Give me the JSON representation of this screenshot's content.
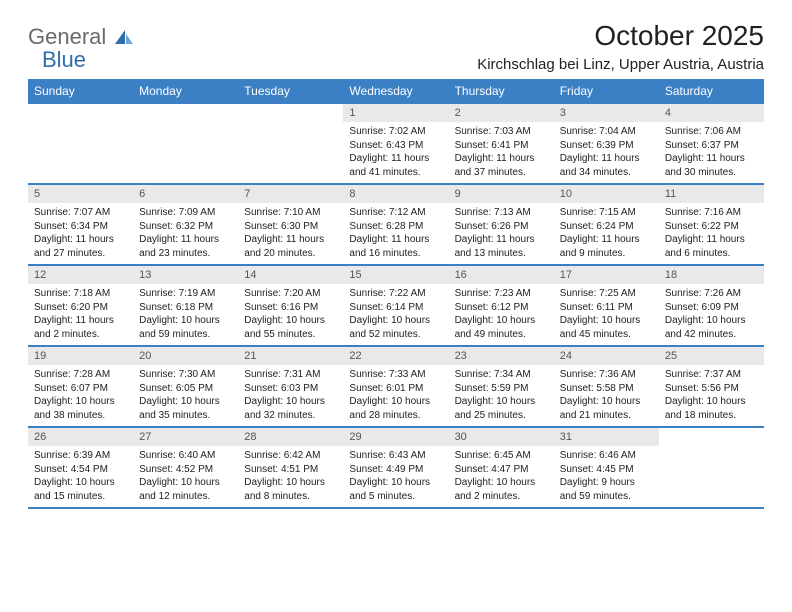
{
  "brand": {
    "general": "General",
    "blue": "Blue"
  },
  "title": "October 2025",
  "location": "Kirchschlag bei Linz, Upper Austria, Austria",
  "colors": {
    "header_bg": "#3b7fc4",
    "header_text": "#ffffff",
    "daynum_bg": "#e9e9e9",
    "daynum_text": "#555555",
    "rule": "#3b7fc4",
    "logo_gray": "#6b6b6b",
    "logo_blue": "#2f6fab",
    "body_text": "#222222",
    "page_bg": "#ffffff"
  },
  "typography": {
    "title_fontsize": 28,
    "location_fontsize": 15,
    "dayheader_fontsize": 12,
    "daynum_fontsize": 11,
    "cell_fontsize": 10
  },
  "day_headers": [
    "Sunday",
    "Monday",
    "Tuesday",
    "Wednesday",
    "Thursday",
    "Friday",
    "Saturday"
  ],
  "weeks": [
    {
      "days": [
        null,
        null,
        null,
        {
          "num": "1",
          "sunrise": "Sunrise: 7:02 AM",
          "sunset": "Sunset: 6:43 PM",
          "daylight": "Daylight: 11 hours and 41 minutes."
        },
        {
          "num": "2",
          "sunrise": "Sunrise: 7:03 AM",
          "sunset": "Sunset: 6:41 PM",
          "daylight": "Daylight: 11 hours and 37 minutes."
        },
        {
          "num": "3",
          "sunrise": "Sunrise: 7:04 AM",
          "sunset": "Sunset: 6:39 PM",
          "daylight": "Daylight: 11 hours and 34 minutes."
        },
        {
          "num": "4",
          "sunrise": "Sunrise: 7:06 AM",
          "sunset": "Sunset: 6:37 PM",
          "daylight": "Daylight: 11 hours and 30 minutes."
        }
      ]
    },
    {
      "days": [
        {
          "num": "5",
          "sunrise": "Sunrise: 7:07 AM",
          "sunset": "Sunset: 6:34 PM",
          "daylight": "Daylight: 11 hours and 27 minutes."
        },
        {
          "num": "6",
          "sunrise": "Sunrise: 7:09 AM",
          "sunset": "Sunset: 6:32 PM",
          "daylight": "Daylight: 11 hours and 23 minutes."
        },
        {
          "num": "7",
          "sunrise": "Sunrise: 7:10 AM",
          "sunset": "Sunset: 6:30 PM",
          "daylight": "Daylight: 11 hours and 20 minutes."
        },
        {
          "num": "8",
          "sunrise": "Sunrise: 7:12 AM",
          "sunset": "Sunset: 6:28 PM",
          "daylight": "Daylight: 11 hours and 16 minutes."
        },
        {
          "num": "9",
          "sunrise": "Sunrise: 7:13 AM",
          "sunset": "Sunset: 6:26 PM",
          "daylight": "Daylight: 11 hours and 13 minutes."
        },
        {
          "num": "10",
          "sunrise": "Sunrise: 7:15 AM",
          "sunset": "Sunset: 6:24 PM",
          "daylight": "Daylight: 11 hours and 9 minutes."
        },
        {
          "num": "11",
          "sunrise": "Sunrise: 7:16 AM",
          "sunset": "Sunset: 6:22 PM",
          "daylight": "Daylight: 11 hours and 6 minutes."
        }
      ]
    },
    {
      "days": [
        {
          "num": "12",
          "sunrise": "Sunrise: 7:18 AM",
          "sunset": "Sunset: 6:20 PM",
          "daylight": "Daylight: 11 hours and 2 minutes."
        },
        {
          "num": "13",
          "sunrise": "Sunrise: 7:19 AM",
          "sunset": "Sunset: 6:18 PM",
          "daylight": "Daylight: 10 hours and 59 minutes."
        },
        {
          "num": "14",
          "sunrise": "Sunrise: 7:20 AM",
          "sunset": "Sunset: 6:16 PM",
          "daylight": "Daylight: 10 hours and 55 minutes."
        },
        {
          "num": "15",
          "sunrise": "Sunrise: 7:22 AM",
          "sunset": "Sunset: 6:14 PM",
          "daylight": "Daylight: 10 hours and 52 minutes."
        },
        {
          "num": "16",
          "sunrise": "Sunrise: 7:23 AM",
          "sunset": "Sunset: 6:12 PM",
          "daylight": "Daylight: 10 hours and 49 minutes."
        },
        {
          "num": "17",
          "sunrise": "Sunrise: 7:25 AM",
          "sunset": "Sunset: 6:11 PM",
          "daylight": "Daylight: 10 hours and 45 minutes."
        },
        {
          "num": "18",
          "sunrise": "Sunrise: 7:26 AM",
          "sunset": "Sunset: 6:09 PM",
          "daylight": "Daylight: 10 hours and 42 minutes."
        }
      ]
    },
    {
      "days": [
        {
          "num": "19",
          "sunrise": "Sunrise: 7:28 AM",
          "sunset": "Sunset: 6:07 PM",
          "daylight": "Daylight: 10 hours and 38 minutes."
        },
        {
          "num": "20",
          "sunrise": "Sunrise: 7:30 AM",
          "sunset": "Sunset: 6:05 PM",
          "daylight": "Daylight: 10 hours and 35 minutes."
        },
        {
          "num": "21",
          "sunrise": "Sunrise: 7:31 AM",
          "sunset": "Sunset: 6:03 PM",
          "daylight": "Daylight: 10 hours and 32 minutes."
        },
        {
          "num": "22",
          "sunrise": "Sunrise: 7:33 AM",
          "sunset": "Sunset: 6:01 PM",
          "daylight": "Daylight: 10 hours and 28 minutes."
        },
        {
          "num": "23",
          "sunrise": "Sunrise: 7:34 AM",
          "sunset": "Sunset: 5:59 PM",
          "daylight": "Daylight: 10 hours and 25 minutes."
        },
        {
          "num": "24",
          "sunrise": "Sunrise: 7:36 AM",
          "sunset": "Sunset: 5:58 PM",
          "daylight": "Daylight: 10 hours and 21 minutes."
        },
        {
          "num": "25",
          "sunrise": "Sunrise: 7:37 AM",
          "sunset": "Sunset: 5:56 PM",
          "daylight": "Daylight: 10 hours and 18 minutes."
        }
      ]
    },
    {
      "days": [
        {
          "num": "26",
          "sunrise": "Sunrise: 6:39 AM",
          "sunset": "Sunset: 4:54 PM",
          "daylight": "Daylight: 10 hours and 15 minutes."
        },
        {
          "num": "27",
          "sunrise": "Sunrise: 6:40 AM",
          "sunset": "Sunset: 4:52 PM",
          "daylight": "Daylight: 10 hours and 12 minutes."
        },
        {
          "num": "28",
          "sunrise": "Sunrise: 6:42 AM",
          "sunset": "Sunset: 4:51 PM",
          "daylight": "Daylight: 10 hours and 8 minutes."
        },
        {
          "num": "29",
          "sunrise": "Sunrise: 6:43 AM",
          "sunset": "Sunset: 4:49 PM",
          "daylight": "Daylight: 10 hours and 5 minutes."
        },
        {
          "num": "30",
          "sunrise": "Sunrise: 6:45 AM",
          "sunset": "Sunset: 4:47 PM",
          "daylight": "Daylight: 10 hours and 2 minutes."
        },
        {
          "num": "31",
          "sunrise": "Sunrise: 6:46 AM",
          "sunset": "Sunset: 4:45 PM",
          "daylight": "Daylight: 9 hours and 59 minutes."
        },
        null
      ]
    }
  ]
}
